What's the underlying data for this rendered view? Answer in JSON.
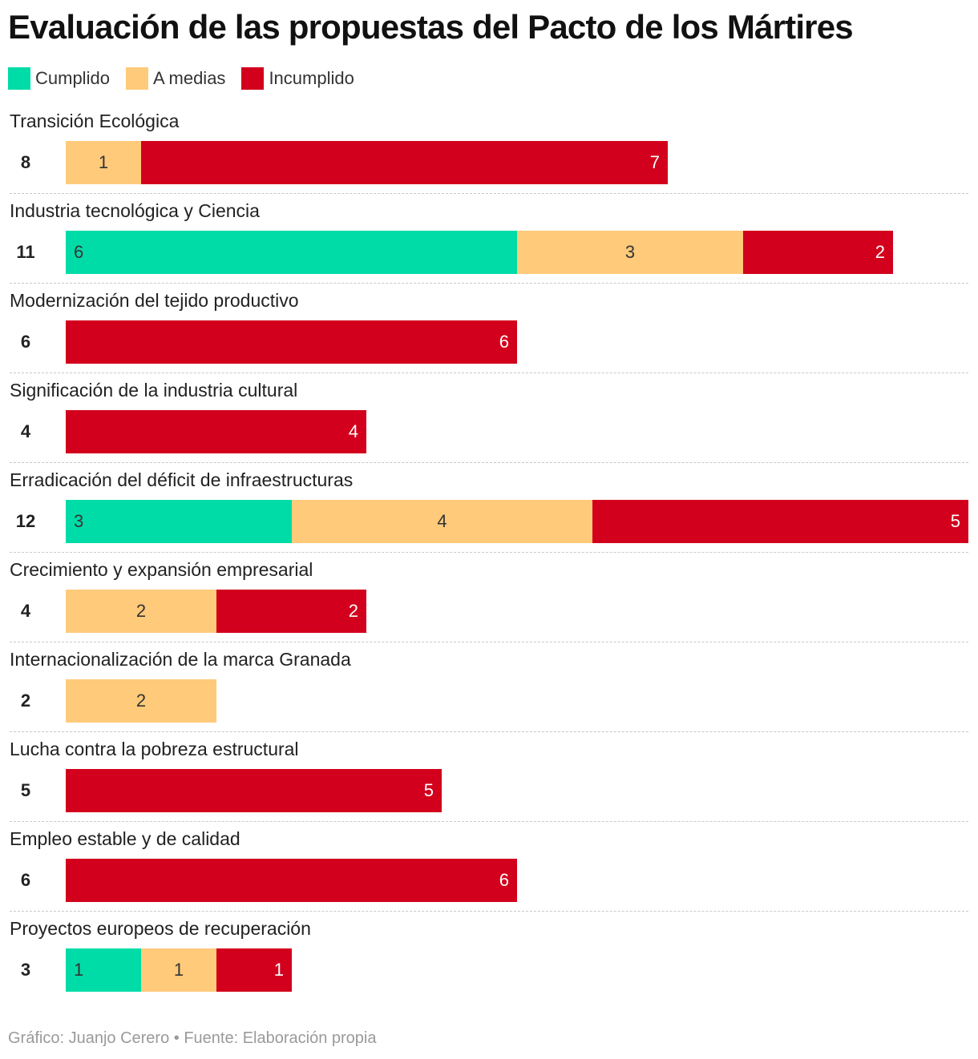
{
  "chart_data": {
    "type": "bar",
    "orientation": "horizontal",
    "stacked": true,
    "title": "Evaluación de las propuestas del Pacto de los Mártires",
    "legend": [
      {
        "key": "cumplido",
        "label": "Cumplido",
        "color": "#00dca8"
      },
      {
        "key": "medias",
        "label": "A medias",
        "color": "#ffca7a"
      },
      {
        "key": "incumplido",
        "label": "Incumplido",
        "color": "#d2001c"
      }
    ],
    "max_total": 12,
    "categories": [
      {
        "label": "Transición Ecológica",
        "total": "8",
        "cumplido": 0,
        "medias": 1,
        "incumplido": 7
      },
      {
        "label": "Industria tecnológica y Ciencia",
        "total": "11",
        "cumplido": 6,
        "medias": 3,
        "incumplido": 2
      },
      {
        "label": "Modernización del tejido productivo",
        "total": "6",
        "cumplido": 0,
        "medias": 0,
        "incumplido": 6
      },
      {
        "label": "Significación de la industria cultural",
        "total": "4",
        "cumplido": 0,
        "medias": 0,
        "incumplido": 4
      },
      {
        "label": "Erradicación del déficit de infraestructuras",
        "total": "12",
        "cumplido": 3,
        "medias": 4,
        "incumplido": 5
      },
      {
        "label": "Crecimiento y expansión empresarial",
        "total": "4",
        "cumplido": 0,
        "medias": 2,
        "incumplido": 2
      },
      {
        "label": "Internacionalización de la marca Granada",
        "total": "2",
        "cumplido": 0,
        "medias": 2,
        "incumplido": 0
      },
      {
        "label": "Lucha contra la pobreza estructural",
        "total": "5",
        "cumplido": 0,
        "medias": 0,
        "incumplido": 5
      },
      {
        "label": "Empleo estable y de calidad",
        "total": "6",
        "cumplido": 0,
        "medias": 0,
        "incumplido": 6
      },
      {
        "label": "Proyectos europeos de recuperación",
        "total": "3",
        "cumplido": 1,
        "medias": 1,
        "incumplido": 1
      }
    ]
  },
  "source": "Gráfico: Juanjo Cerero • Fuente: Elaboración propia"
}
